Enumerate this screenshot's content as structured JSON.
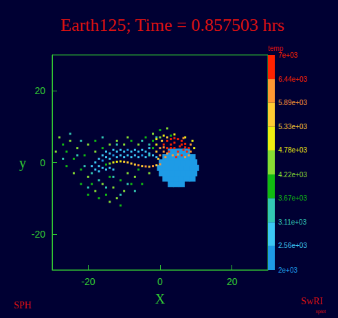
{
  "chart_data": {
    "type": "scatter",
    "title": "Earth125; Time = 0.857503 hrs",
    "xlabel": "X",
    "ylabel": "y",
    "xlim": [
      -30,
      30
    ],
    "ylim": [
      -30,
      30
    ],
    "xticks": [
      -20,
      0,
      20
    ],
    "yticks": [
      -20,
      0,
      20
    ],
    "grid": false,
    "annotations": [
      "SPH",
      "SwRI",
      "xplot"
    ],
    "colorbar": {
      "label": "temp",
      "range": [
        2000,
        7000
      ],
      "ticks": [
        {
          "value": 2000,
          "label": "2e+03"
        },
        {
          "value": 2560,
          "label": "2.56e+03"
        },
        {
          "value": 3110,
          "label": "3.11e+03"
        },
        {
          "value": 3670,
          "label": "3.67e+03"
        },
        {
          "value": 4220,
          "label": "4.22e+03"
        },
        {
          "value": 4780,
          "label": "4.78e+03"
        },
        {
          "value": 5330,
          "label": "5.33e+03"
        },
        {
          "value": 5890,
          "label": "5.89e+03"
        },
        {
          "value": 6440,
          "label": "6.44e+03"
        },
        {
          "value": 7000,
          "label": "7e+03"
        }
      ],
      "colors": [
        "#1e9be6",
        "#3cc8f5",
        "#33c8b4",
        "#11bb11",
        "#88dd33",
        "#eeee11",
        "#ffcc33",
        "#ff9933",
        "#ff2200"
      ]
    },
    "points": [
      [
        3,
        -6,
        2200
      ],
      [
        4.5,
        -6,
        2200
      ],
      [
        6,
        -6,
        2200
      ],
      [
        1.5,
        -4.5,
        2200
      ],
      [
        3,
        -4.5,
        2200
      ],
      [
        4.5,
        -4.5,
        2200
      ],
      [
        6,
        -4.5,
        2200
      ],
      [
        7.5,
        -4.5,
        2200
      ],
      [
        9,
        -4.5,
        2200
      ],
      [
        0.5,
        -3,
        2200
      ],
      [
        2,
        -3,
        2200
      ],
      [
        3.5,
        -3,
        2200
      ],
      [
        5,
        -3,
        2200
      ],
      [
        6.5,
        -3,
        2200
      ],
      [
        8,
        -3,
        2200
      ],
      [
        9.5,
        -3,
        2200
      ],
      [
        0,
        -1.5,
        2200
      ],
      [
        1.5,
        -1.5,
        2200
      ],
      [
        3,
        -1.5,
        2200
      ],
      [
        4.5,
        -1.5,
        2200
      ],
      [
        6,
        -1.5,
        2200
      ],
      [
        7.5,
        -1.5,
        2200
      ],
      [
        9,
        -1.5,
        2200
      ],
      [
        10,
        -1.5,
        2200
      ],
      [
        0.5,
        0,
        2200
      ],
      [
        2,
        0,
        2200
      ],
      [
        3.5,
        0,
        2200
      ],
      [
        5,
        0,
        2200
      ],
      [
        6.5,
        0,
        2200
      ],
      [
        8,
        0,
        2200
      ],
      [
        9.5,
        0,
        2200
      ],
      [
        1.5,
        1.5,
        2200
      ],
      [
        3,
        1.5,
        2200
      ],
      [
        4.5,
        1.5,
        2200
      ],
      [
        6,
        1.5,
        2200
      ],
      [
        7.5,
        1.5,
        2200
      ],
      [
        9,
        1.5,
        2200
      ],
      [
        3,
        3,
        2200
      ],
      [
        4.5,
        3,
        2200
      ],
      [
        6,
        3,
        2200
      ],
      [
        7.5,
        3,
        2200
      ],
      [
        -18,
        0,
        2800
      ],
      [
        -17,
        1,
        2600
      ],
      [
        -17,
        -1,
        2700
      ],
      [
        -16,
        2,
        2900
      ],
      [
        -16,
        0.5,
        2500
      ],
      [
        -15,
        1.5,
        2700
      ],
      [
        -15,
        3,
        3000
      ],
      [
        -14,
        1,
        2600
      ],
      [
        -14,
        2.5,
        2800
      ],
      [
        -13,
        2,
        2500
      ],
      [
        -13,
        3.5,
        2900
      ],
      [
        -12,
        1.5,
        2700
      ],
      [
        -12,
        3,
        2600
      ],
      [
        -11,
        2,
        2800
      ],
      [
        -11,
        3.5,
        3000
      ],
      [
        -10,
        1.5,
        2600
      ],
      [
        -10,
        3,
        2700
      ],
      [
        -9,
        2,
        2900
      ],
      [
        -9,
        3.5,
        2500
      ],
      [
        -8,
        1.5,
        2700
      ],
      [
        -8,
        3,
        2800
      ],
      [
        -7,
        2,
        2600
      ],
      [
        -7,
        3.5,
        3000
      ],
      [
        -6,
        1.5,
        2900
      ],
      [
        -6,
        3,
        2700
      ],
      [
        -5,
        2,
        2500
      ],
      [
        -5,
        3.5,
        2800
      ],
      [
        -4,
        1.5,
        2700
      ],
      [
        -4,
        3,
        2600
      ],
      [
        -3,
        2.5,
        2900
      ],
      [
        -3,
        4,
        2800
      ],
      [
        -2,
        2,
        2700
      ],
      [
        -1,
        1.5,
        2600
      ],
      [
        -19,
        -1,
        2900
      ],
      [
        -18,
        -2,
        2700
      ],
      [
        -17,
        -2.5,
        3000
      ],
      [
        -16,
        -1.5,
        2600
      ],
      [
        -15,
        -2,
        2800
      ],
      [
        -14,
        -1.5,
        2700
      ],
      [
        -13,
        -2,
        2900
      ],
      [
        -25,
        8,
        3400
      ],
      [
        -22,
        6,
        3300
      ],
      [
        -21,
        -1,
        3500
      ],
      [
        -19,
        -3,
        3200
      ],
      [
        -17,
        -5,
        3400
      ],
      [
        -15,
        -7,
        3600
      ],
      [
        -13,
        -4,
        3300
      ],
      [
        -11,
        -9,
        3500
      ],
      [
        -9,
        -6,
        3200
      ],
      [
        -7,
        -8,
        3400
      ],
      [
        -23,
        2,
        3500
      ],
      [
        -27,
        1,
        3300
      ],
      [
        -16,
        7,
        3400
      ],
      [
        -12,
        5,
        3200
      ],
      [
        -5,
        6,
        3500
      ],
      [
        -3,
        5,
        3300
      ],
      [
        -1,
        7,
        3400
      ],
      [
        -20,
        -7,
        3300
      ],
      [
        -28,
        7,
        4300
      ],
      [
        -27,
        5,
        4100
      ],
      [
        -26,
        3,
        3900
      ],
      [
        -25,
        6,
        4400
      ],
      [
        -24,
        1,
        4000
      ],
      [
        -23,
        4,
        4500
      ],
      [
        -22,
        -2,
        3800
      ],
      [
        -21,
        2,
        4200
      ],
      [
        -20,
        5,
        4600
      ],
      [
        -20,
        -4,
        4300
      ],
      [
        -19,
        -6,
        4000
      ],
      [
        -18,
        -8,
        4400
      ],
      [
        -17,
        -10,
        4100
      ],
      [
        -16,
        -6,
        4500
      ],
      [
        -15,
        -9,
        3900
      ],
      [
        -14,
        -4,
        4200
      ],
      [
        -13,
        -7,
        4600
      ],
      [
        -12,
        -10,
        4300
      ],
      [
        -11,
        -5,
        4000
      ],
      [
        -10,
        -8,
        4400
      ],
      [
        -9,
        -3,
        4700
      ],
      [
        -8,
        -6,
        4100
      ],
      [
        -7,
        -4,
        4500
      ],
      [
        -6,
        -2,
        4200
      ],
      [
        -12,
        6,
        4300
      ],
      [
        -10,
        5,
        4500
      ],
      [
        -8,
        6,
        4000
      ],
      [
        -6,
        5,
        4400
      ],
      [
        -4,
        7,
        4200
      ],
      [
        -2,
        8,
        4600
      ],
      [
        0,
        9,
        4100
      ],
      [
        2,
        9.5,
        4300
      ],
      [
        -14,
        5,
        4700
      ],
      [
        -16,
        4,
        4100
      ],
      [
        -18,
        3,
        4400
      ],
      [
        -22,
        -6,
        4200
      ],
      [
        -24,
        -3,
        4500
      ],
      [
        -20,
        -9,
        4000
      ],
      [
        -14,
        -11,
        4400
      ],
      [
        -11,
        -12,
        4200
      ],
      [
        -5,
        -6,
        4000
      ],
      [
        -3,
        -3,
        4300
      ],
      [
        -26,
        -1,
        4100
      ],
      [
        -29,
        3,
        4300
      ],
      [
        -9,
        7,
        4500
      ],
      [
        -18,
        6,
        4000
      ],
      [
        0,
        7,
        4500
      ],
      [
        -2,
        6,
        4000
      ],
      [
        3,
        7.5,
        4200
      ],
      [
        -2,
        4,
        3900
      ],
      [
        -3,
        2,
        3500
      ],
      [
        -1,
        6.5,
        5000
      ],
      [
        1,
        7.5,
        4900
      ],
      [
        4,
        7.8,
        5100
      ],
      [
        7,
        7,
        5300
      ],
      [
        9,
        6,
        5000
      ],
      [
        9.5,
        4,
        5200
      ],
      [
        0,
        -0.5,
        6000
      ],
      [
        -1,
        -0.8,
        5700
      ],
      [
        -2,
        -1,
        5900
      ],
      [
        -3,
        -1.2,
        5600
      ],
      [
        -4,
        -1.1,
        6200
      ],
      [
        -5,
        -1,
        5800
      ],
      [
        -6,
        -0.8,
        6000
      ],
      [
        -7,
        -0.6,
        5600
      ],
      [
        -8,
        -0.3,
        5400
      ],
      [
        -9,
        0,
        5800
      ],
      [
        -10,
        0.2,
        5500
      ],
      [
        -11,
        0.3,
        5000
      ],
      [
        -12,
        0.2,
        5200
      ],
      [
        -13,
        0,
        4800
      ],
      [
        -14,
        -0.3,
        4500
      ],
      [
        -15,
        -0.6,
        4200
      ],
      [
        0,
        4,
        6000
      ],
      [
        1,
        5,
        6500
      ],
      [
        2,
        6,
        6700
      ],
      [
        3,
        6.5,
        6800
      ],
      [
        4,
        6.8,
        6600
      ],
      [
        5,
        6.5,
        6900
      ],
      [
        6,
        6,
        6800
      ],
      [
        7,
        5.2,
        6700
      ],
      [
        8,
        4,
        6500
      ],
      [
        8.5,
        3,
        6300
      ],
      [
        8,
        2,
        6000
      ],
      [
        7,
        1.5,
        6400
      ],
      [
        6,
        2,
        6800
      ],
      [
        5,
        3,
        6900
      ],
      [
        4,
        4,
        6800
      ],
      [
        3,
        5,
        6700
      ],
      [
        2,
        4,
        6600
      ],
      [
        1,
        3,
        6400
      ],
      [
        0,
        2,
        6000
      ],
      [
        -1,
        3,
        5600
      ],
      [
        -1,
        5,
        5200
      ],
      [
        0.5,
        6,
        5800
      ],
      [
        2.5,
        3,
        6500
      ],
      [
        3.5,
        2,
        6300
      ],
      [
        4.5,
        1.5,
        6600
      ],
      [
        5.5,
        4.5,
        6900
      ],
      [
        6.5,
        3.5,
        6900
      ],
      [
        7.5,
        3,
        6600
      ],
      [
        3,
        4,
        6700
      ],
      [
        4,
        5.5,
        6800
      ],
      [
        6,
        5,
        6900
      ],
      [
        1.5,
        1.5,
        5900
      ],
      [
        -0.5,
        1,
        5400
      ],
      [
        2,
        2.5,
        6200
      ],
      [
        5,
        2.2,
        6100
      ],
      [
        7,
        4.2,
        6800
      ],
      [
        8.5,
        5,
        6200
      ],
      [
        2,
        7,
        5600
      ],
      [
        6.5,
        6.8,
        5900
      ],
      [
        1,
        4.2,
        6300
      ]
    ]
  }
}
